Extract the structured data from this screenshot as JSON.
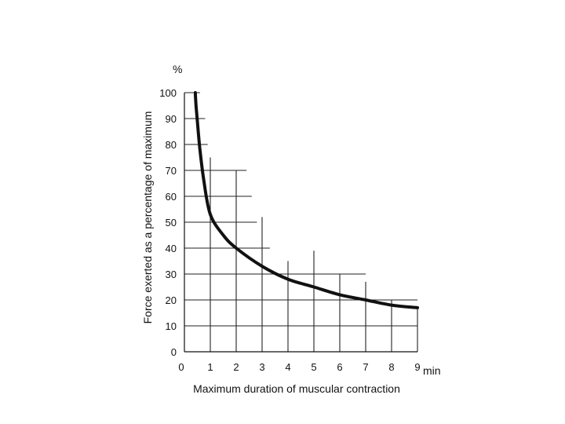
{
  "chart_data": {
    "type": "line",
    "ylabel": "Force exerted as a percentage of maximum",
    "xlabel": "Maximum duration of muscular contraction",
    "y_unit": "%",
    "x_unit": "min",
    "xlim": [
      0,
      9
    ],
    "ylim": [
      0,
      100
    ],
    "x_ticks": [
      "0",
      "1",
      "2",
      "3",
      "4",
      "5",
      "6",
      "7",
      "8",
      "9"
    ],
    "y_ticks": [
      "0",
      "10",
      "20",
      "30",
      "40",
      "50",
      "60",
      "70",
      "80",
      "90",
      "100"
    ],
    "grid": true,
    "series": [
      {
        "x": [
          0.42,
          0.45,
          0.5,
          0.6,
          0.75,
          1.0,
          1.5,
          2.0,
          3.0,
          4.0,
          5.0,
          6.0,
          7.0,
          8.0,
          9.0
        ],
        "y": [
          100,
          95,
          89,
          78,
          66,
          53,
          45,
          40,
          33,
          28,
          25,
          22,
          20,
          18,
          17
        ]
      }
    ],
    "grid_segments": {
      "vertical": [
        {
          "x": 1,
          "y_top": 75
        },
        {
          "x": 2,
          "y_top": 70
        },
        {
          "x": 3,
          "y_top": 52
        },
        {
          "x": 4,
          "y_top": 35
        },
        {
          "x": 5,
          "y_top": 39
        },
        {
          "x": 6,
          "y_top": 30
        },
        {
          "x": 7,
          "y_top": 27
        },
        {
          "x": 8,
          "y_top": 20
        },
        {
          "x": 9,
          "y_top": 17
        }
      ],
      "horizontal": [
        {
          "y": 10,
          "x_end": 9
        },
        {
          "y": 20,
          "x_end": 9
        },
        {
          "y": 30,
          "x_end": 7
        },
        {
          "y": 40,
          "x_end": 3.3
        },
        {
          "y": 50,
          "x_end": 2.8
        },
        {
          "y": 60,
          "x_end": 2.6
        },
        {
          "y": 70,
          "x_end": 2.4
        },
        {
          "y": 80,
          "x_end": 0.9
        },
        {
          "y": 90,
          "x_end": 0.8
        },
        {
          "y": 100,
          "x_end": 0.6
        }
      ]
    }
  }
}
